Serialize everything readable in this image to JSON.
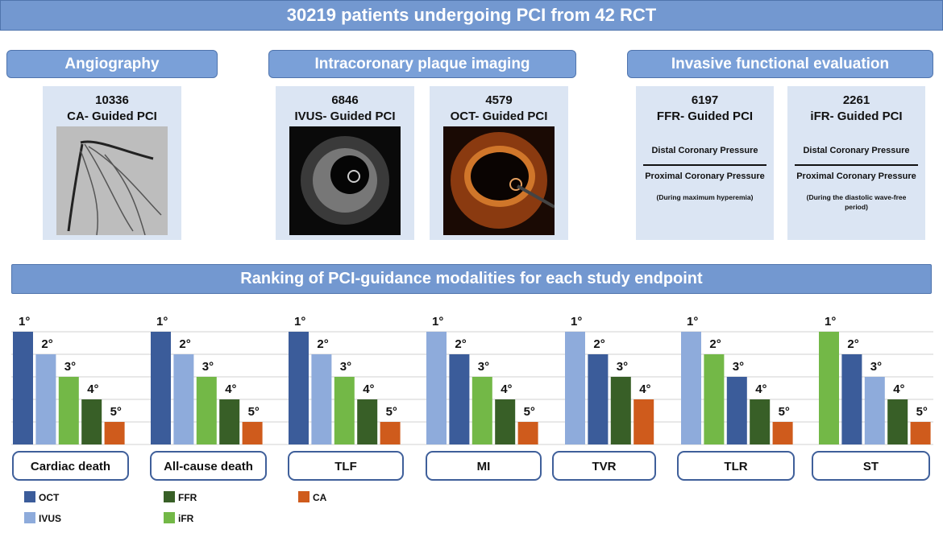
{
  "header": {
    "title": "30219 patients undergoing PCI from 42 RCT"
  },
  "sections": [
    {
      "title": "Angiography",
      "cards": [
        {
          "count": 10336,
          "label": "CA- Guided PCI"
        }
      ]
    },
    {
      "title": "Intracoronary plaque imaging",
      "cards": [
        {
          "count": 6846,
          "label": "IVUS- Guided PCI"
        },
        {
          "count": 4579,
          "label": "OCT- Guided PCI"
        }
      ]
    },
    {
      "title": "Invasive functional evaluation",
      "cards": [
        {
          "count": 6197,
          "label": "FFR- Guided PCI",
          "numerator": "Distal Coronary Pressure",
          "denominator": "Proximal Coronary Pressure",
          "note": "(During maximum hyperemia)"
        },
        {
          "count": 2261,
          "label": "iFR- Guided PCI",
          "numerator": "Distal Coronary Pressure",
          "denominator": "Proximal Coronary Pressure",
          "note": "(During the diastolic wave-free period)"
        }
      ]
    }
  ],
  "ranking": {
    "title": "Ranking of PCI-guidance modalities for each study endpoint",
    "endpoints": [
      {
        "name": "Cardiac death",
        "bars": [
          {
            "rank": "1°",
            "modality": "OCT"
          },
          {
            "rank": "2°",
            "modality": "IVUS"
          },
          {
            "rank": "3°",
            "modality": "iFR"
          },
          {
            "rank": "4°",
            "modality": "FFR"
          },
          {
            "rank": "5°",
            "modality": "CA"
          }
        ]
      },
      {
        "name": "All-cause death",
        "bars": [
          {
            "rank": "1°",
            "modality": "OCT"
          },
          {
            "rank": "2°",
            "modality": "IVUS"
          },
          {
            "rank": "3°",
            "modality": "iFR"
          },
          {
            "rank": "4°",
            "modality": "FFR"
          },
          {
            "rank": "5°",
            "modality": "CA"
          }
        ]
      },
      {
        "name": "TLF",
        "bars": [
          {
            "rank": "1°",
            "modality": "OCT"
          },
          {
            "rank": "2°",
            "modality": "IVUS"
          },
          {
            "rank": "3°",
            "modality": "iFR"
          },
          {
            "rank": "4°",
            "modality": "FFR"
          },
          {
            "rank": "5°",
            "modality": "CA"
          }
        ]
      },
      {
        "name": "MI",
        "bars": [
          {
            "rank": "1°",
            "modality": "IVUS"
          },
          {
            "rank": "2°",
            "modality": "OCT"
          },
          {
            "rank": "3°",
            "modality": "iFR"
          },
          {
            "rank": "4°",
            "modality": "FFR"
          },
          {
            "rank": "5°",
            "modality": "CA"
          }
        ]
      },
      {
        "name": "TVR",
        "bars": [
          {
            "rank": "1°",
            "modality": "IVUS"
          },
          {
            "rank": "2°",
            "modality": "OCT"
          },
          {
            "rank": "3°",
            "modality": "FFR"
          },
          {
            "rank": "4°",
            "modality": "CA"
          }
        ]
      },
      {
        "name": "TLR",
        "bars": [
          {
            "rank": "1°",
            "modality": "IVUS"
          },
          {
            "rank": "2°",
            "modality": "iFR"
          },
          {
            "rank": "3°",
            "modality": "OCT"
          },
          {
            "rank": "4°",
            "modality": "FFR"
          },
          {
            "rank": "5°",
            "modality": "CA"
          }
        ]
      },
      {
        "name": "ST",
        "bars": [
          {
            "rank": "1°",
            "modality": "iFR"
          },
          {
            "rank": "2°",
            "modality": "OCT"
          },
          {
            "rank": "3°",
            "modality": "IVUS"
          },
          {
            "rank": "4°",
            "modality": "FFR"
          },
          {
            "rank": "5°",
            "modality": "CA"
          }
        ]
      }
    ],
    "legend": [
      {
        "name": "OCT",
        "color": "#3b5c9a"
      },
      {
        "name": "IVUS",
        "color": "#8eabdb"
      },
      {
        "name": "FFR",
        "color": "#385f27"
      },
      {
        "name": "iFR",
        "color": "#73b847"
      },
      {
        "name": "CA",
        "color": "#cf5b1c"
      }
    ]
  }
}
